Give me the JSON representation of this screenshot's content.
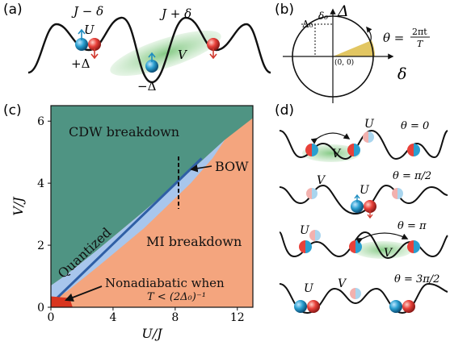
{
  "panels": {
    "a": {
      "label": "(a)",
      "hop_left": "J − δ",
      "hop_right": "J + δ",
      "U": "U",
      "V": "V",
      "plus_delta": "+Δ",
      "minus_delta": "−Δ"
    },
    "b": {
      "label": "(b)",
      "delta_axis": "Δ",
      "delta0_tick": "Δ₀",
      "d0_tick": "δ₀",
      "theta_eq": "θ = 2πt/T",
      "theta_lhs": "θ =",
      "theta_num": "2πt",
      "theta_den": "T",
      "origin": "(0, 0)",
      "x_axis": "δ"
    },
    "c": {
      "label": "(c)",
      "cdw": "CDW breakdown",
      "bow": "BOW",
      "quantized": "Quantized",
      "mi": "MI breakdown",
      "nonadiabatic_line1": "Nonadiabatic when",
      "nonadiabatic_line2": "T < (2Δ₀)⁻¹"
    },
    "d": {
      "label": "(d)",
      "rows": [
        {
          "theta": "θ = 0",
          "U": "U",
          "V": "V"
        },
        {
          "theta": "θ = π/2",
          "U": "U",
          "V": "V"
        },
        {
          "theta": "θ = π",
          "U": "U",
          "V": "V"
        },
        {
          "theta": "θ = 3π/2",
          "U": "U",
          "V": "V"
        }
      ]
    }
  },
  "chart_data": {
    "type": "area",
    "xlabel": "U/J",
    "ylabel": "V/J",
    "xlim": [
      0,
      13
    ],
    "ylim": [
      0,
      6.5
    ],
    "xticks": [
      0,
      4,
      8,
      12
    ],
    "yticks": [
      0,
      2,
      4,
      6
    ],
    "regions": [
      {
        "name": "CDW breakdown",
        "color": "#4f9483"
      },
      {
        "name": "MI breakdown",
        "color": "#f4a57e"
      },
      {
        "name": "Quantized",
        "color": "#a8c6ec"
      },
      {
        "name": "BOW",
        "color": "#2f5fa6"
      },
      {
        "name": "Nonadiabatic",
        "color": "#d8351f"
      }
    ],
    "bow_line": {
      "x": [
        0.4,
        9.7
      ],
      "y": [
        0.3,
        4.8
      ]
    },
    "dashed_line": {
      "x": [
        8.2,
        8.2
      ],
      "y": [
        3.3,
        5.0
      ]
    },
    "colors": {
      "cdw": "#4f9483",
      "mi": "#f4a57e",
      "quantized": "#a8c6ec",
      "bow": "#2f5fa6",
      "nonadiabatic": "#d8351f"
    }
  }
}
